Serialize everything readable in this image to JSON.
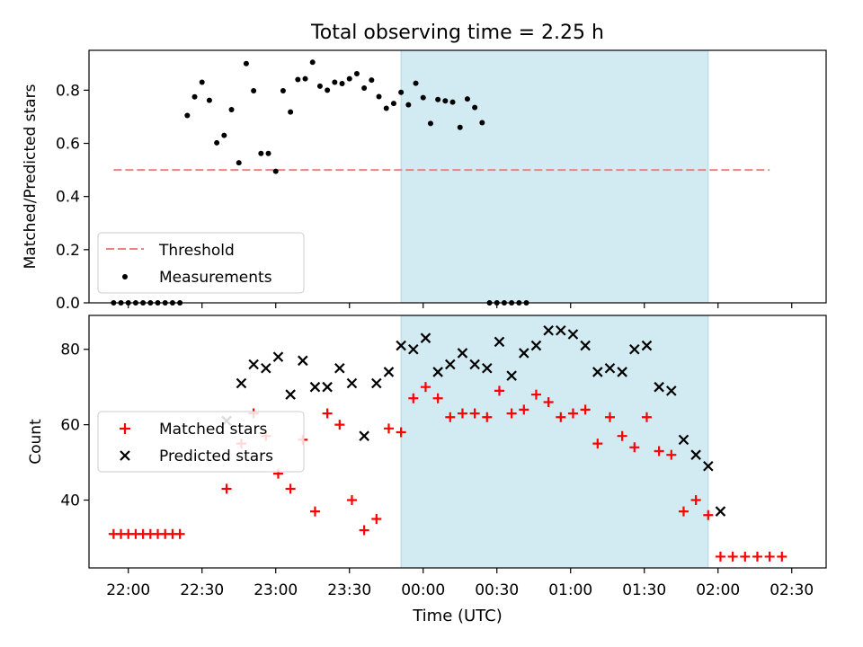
{
  "figure": {
    "title": "Total observing time = 2.25 h",
    "xlabel": "Time (UTC)"
  },
  "chart_data": [
    {
      "type": "scatter",
      "name": "ratio-panel",
      "ylabel": "Matched/Predicted stars",
      "xlim": [
        "21:44",
        "02:44"
      ],
      "ylim": [
        0,
        0.95
      ],
      "yticks": [
        0.0,
        0.2,
        0.4,
        0.6,
        0.8
      ],
      "ytick_labels": [
        "0.0",
        "0.2",
        "0.4",
        "0.6",
        "0.8"
      ],
      "highlight_span": {
        "start": "23:51",
        "end": "01:56",
        "color": "#add8e6"
      },
      "legend": {
        "position": "lower-left",
        "entries": [
          "Threshold",
          "Measurements"
        ]
      },
      "threshold": {
        "name": "Threshold",
        "y": 0.5,
        "x_start": "21:54",
        "x_end": "02:21",
        "color": "#f08080",
        "style": "dashed"
      },
      "series": [
        {
          "name": "Measurements",
          "marker": "dot",
          "color": "#000000",
          "points": [
            [
              "21:54",
              0.0
            ],
            [
              "21:57",
              0.0
            ],
            [
              "22:00",
              0.0
            ],
            [
              "22:03",
              0.0
            ],
            [
              "22:06",
              0.0
            ],
            [
              "22:09",
              0.0
            ],
            [
              "22:12",
              0.0
            ],
            [
              "22:15",
              0.0
            ],
            [
              "22:18",
              0.0
            ],
            [
              "22:21",
              0.0
            ],
            [
              "22:24",
              0.705
            ],
            [
              "22:27",
              0.775
            ],
            [
              "22:30",
              0.83
            ],
            [
              "22:33",
              0.762
            ],
            [
              "22:36",
              0.602
            ],
            [
              "22:39",
              0.63
            ],
            [
              "22:42",
              0.727
            ],
            [
              "22:45",
              0.527
            ],
            [
              "22:48",
              0.9
            ],
            [
              "22:51",
              0.798
            ],
            [
              "22:54",
              0.562
            ],
            [
              "22:57",
              0.562
            ],
            [
              "23:00",
              0.495
            ],
            [
              "23:03",
              0.798
            ],
            [
              "23:06",
              0.718
            ],
            [
              "23:09",
              0.84
            ],
            [
              "23:12",
              0.843
            ],
            [
              "23:15",
              0.905
            ],
            [
              "23:18",
              0.815
            ],
            [
              "23:21",
              0.8
            ],
            [
              "23:24",
              0.83
            ],
            [
              "23:27",
              0.825
            ],
            [
              "23:30",
              0.843
            ],
            [
              "23:33",
              0.862
            ],
            [
              "23:36",
              0.808
            ],
            [
              "23:39",
              0.838
            ],
            [
              "23:42",
              0.776
            ],
            [
              "23:45",
              0.732
            ],
            [
              "23:48",
              0.75
            ],
            [
              "23:51",
              0.792
            ],
            [
              "23:54",
              0.745
            ],
            [
              "23:57",
              0.826
            ],
            [
              "00:00",
              0.772
            ],
            [
              "00:03",
              0.675
            ],
            [
              "00:06",
              0.765
            ],
            [
              "00:09",
              0.76
            ],
            [
              "00:12",
              0.755
            ],
            [
              "00:15",
              0.66
            ],
            [
              "00:18",
              0.767
            ],
            [
              "00:21",
              0.735
            ],
            [
              "00:24",
              0.678
            ],
            [
              "00:27",
              0.0
            ],
            [
              "00:30",
              0.0
            ],
            [
              "00:33",
              0.0
            ],
            [
              "00:36",
              0.0
            ],
            [
              "00:39",
              0.0
            ],
            [
              "00:42",
              0.0
            ]
          ]
        }
      ]
    },
    {
      "type": "scatter",
      "name": "count-panel",
      "ylabel": "Count",
      "xlim": [
        "21:44",
        "02:44"
      ],
      "ylim": [
        22,
        89
      ],
      "yticks": [
        40,
        60,
        80
      ],
      "ytick_labels": [
        "40",
        "60",
        "80"
      ],
      "xticks": [
        "22:00",
        "22:30",
        "23:00",
        "23:30",
        "00:00",
        "00:30",
        "01:00",
        "01:30",
        "02:00",
        "02:30"
      ],
      "xtick_labels": [
        "22:00",
        "22:30",
        "23:00",
        "23:30",
        "00:00",
        "00:30",
        "01:00",
        "01:30",
        "02:00",
        "02:30"
      ],
      "highlight_span": {
        "start": "23:51",
        "end": "01:56",
        "color": "#add8e6"
      },
      "legend": {
        "position": "center-left",
        "entries": [
          "Matched stars",
          "Predicted stars"
        ]
      },
      "series": [
        {
          "name": "Matched stars",
          "marker": "plus",
          "color": "#ff0000",
          "points": [
            [
              "21:54",
              31
            ],
            [
              "21:57",
              31
            ],
            [
              "22:00",
              31
            ],
            [
              "22:03",
              31
            ],
            [
              "22:06",
              31
            ],
            [
              "22:09",
              31
            ],
            [
              "22:12",
              31
            ],
            [
              "22:15",
              31
            ],
            [
              "22:18",
              31
            ],
            [
              "22:21",
              31
            ],
            [
              "22:40",
              43
            ],
            [
              "22:46",
              55
            ],
            [
              "22:51",
              63
            ],
            [
              "22:56",
              57
            ],
            [
              "23:01",
              47
            ],
            [
              "23:06",
              43
            ],
            [
              "23:11",
              56
            ],
            [
              "23:16",
              37
            ],
            [
              "23:21",
              63
            ],
            [
              "23:26",
              60
            ],
            [
              "23:31",
              40
            ],
            [
              "23:36",
              32
            ],
            [
              "23:41",
              35
            ],
            [
              "23:46",
              59
            ],
            [
              "23:51",
              58
            ],
            [
              "23:56",
              67
            ],
            [
              "00:01",
              70
            ],
            [
              "00:06",
              67
            ],
            [
              "00:11",
              62
            ],
            [
              "00:16",
              63
            ],
            [
              "00:21",
              63
            ],
            [
              "00:26",
              62
            ],
            [
              "00:31",
              69
            ],
            [
              "00:36",
              63
            ],
            [
              "00:41",
              64
            ],
            [
              "00:46",
              68
            ],
            [
              "00:51",
              66
            ],
            [
              "00:56",
              62
            ],
            [
              "01:01",
              63
            ],
            [
              "01:06",
              64
            ],
            [
              "01:11",
              55
            ],
            [
              "01:16",
              62
            ],
            [
              "01:21",
              57
            ],
            [
              "01:26",
              54
            ],
            [
              "01:31",
              62
            ],
            [
              "01:36",
              53
            ],
            [
              "01:41",
              52
            ],
            [
              "01:46",
              37
            ],
            [
              "01:51",
              40
            ],
            [
              "01:56",
              36
            ],
            [
              "02:01",
              25
            ],
            [
              "02:06",
              25
            ],
            [
              "02:11",
              25
            ],
            [
              "02:16",
              25
            ],
            [
              "02:21",
              25
            ],
            [
              "02:26",
              25
            ]
          ]
        },
        {
          "name": "Predicted stars",
          "marker": "x",
          "color": "#000000",
          "points": [
            [
              "22:40",
              61
            ],
            [
              "22:46",
              71
            ],
            [
              "22:51",
              76
            ],
            [
              "22:56",
              75
            ],
            [
              "23:01",
              78
            ],
            [
              "23:06",
              68
            ],
            [
              "23:11",
              77
            ],
            [
              "23:16",
              70
            ],
            [
              "23:21",
              70
            ],
            [
              "23:26",
              75
            ],
            [
              "23:31",
              71
            ],
            [
              "23:36",
              57
            ],
            [
              "23:41",
              71
            ],
            [
              "23:46",
              74
            ],
            [
              "23:51",
              81
            ],
            [
              "23:56",
              80
            ],
            [
              "00:01",
              83
            ],
            [
              "00:06",
              74
            ],
            [
              "00:11",
              76
            ],
            [
              "00:16",
              79
            ],
            [
              "00:21",
              76
            ],
            [
              "00:26",
              75
            ],
            [
              "00:31",
              82
            ],
            [
              "00:36",
              73
            ],
            [
              "00:41",
              79
            ],
            [
              "00:46",
              81
            ],
            [
              "00:51",
              85
            ],
            [
              "00:56",
              85
            ],
            [
              "01:01",
              84
            ],
            [
              "01:06",
              81
            ],
            [
              "01:11",
              74
            ],
            [
              "01:16",
              75
            ],
            [
              "01:21",
              74
            ],
            [
              "01:26",
              80
            ],
            [
              "01:31",
              81
            ],
            [
              "01:36",
              70
            ],
            [
              "01:41",
              69
            ],
            [
              "01:46",
              56
            ],
            [
              "01:51",
              52
            ],
            [
              "01:56",
              49
            ],
            [
              "02:01",
              37
            ]
          ]
        }
      ]
    }
  ]
}
